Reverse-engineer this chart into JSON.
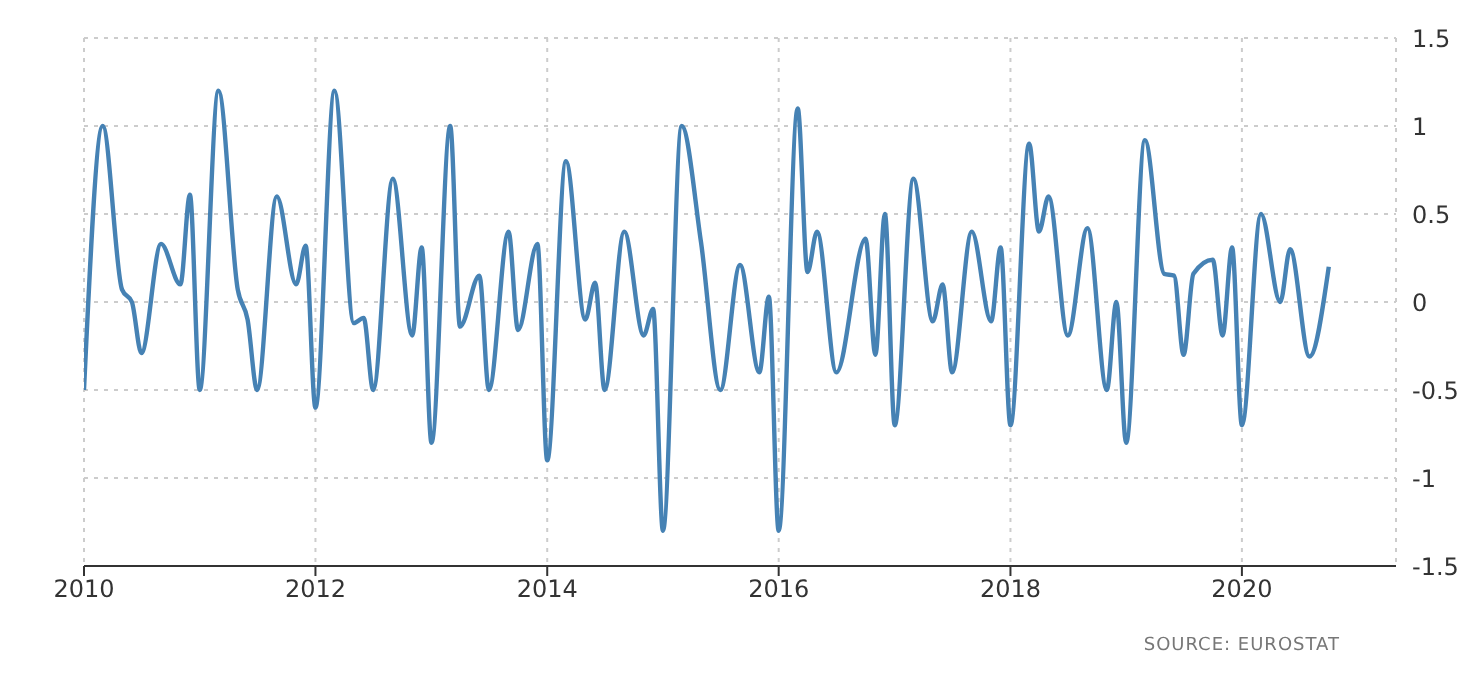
{
  "chart_data": {
    "type": "line",
    "annotations": [
      "SOURCE: EUROSTAT"
    ],
    "x": [
      "2010-01",
      "2010-03",
      "2010-05",
      "2010-06",
      "2010-07",
      "2010-09",
      "2010-11",
      "2010-12",
      "2011-01",
      "2011-03",
      "2011-05",
      "2011-06",
      "2011-07",
      "2011-09",
      "2011-11",
      "2011-12",
      "2012-01",
      "2012-03",
      "2012-05",
      "2012-06",
      "2012-07",
      "2012-09",
      "2012-11",
      "2012-12",
      "2013-01",
      "2013-03",
      "2013-04",
      "2013-06",
      "2013-07",
      "2013-09",
      "2013-10",
      "2013-12",
      "2014-01",
      "2014-03",
      "2014-05",
      "2014-06",
      "2014-07",
      "2014-09",
      "2014-11",
      "2014-12",
      "2015-01",
      "2015-03",
      "2015-05",
      "2015-07",
      "2015-09",
      "2015-11",
      "2015-12",
      "2016-01",
      "2016-03",
      "2016-04",
      "2016-05",
      "2016-07",
      "2016-10",
      "2016-11",
      "2016-12",
      "2017-01",
      "2017-03",
      "2017-05",
      "2017-06",
      "2017-07",
      "2017-09",
      "2017-11",
      "2017-12",
      "2018-01",
      "2018-03",
      "2018-04",
      "2018-05",
      "2018-07",
      "2018-09",
      "2018-11",
      "2018-12",
      "2019-01",
      "2019-03",
      "2019-05",
      "2019-06",
      "2019-07",
      "2019-08",
      "2019-10",
      "2019-11",
      "2019-12",
      "2020-01",
      "2020-03",
      "2020-05",
      "2020-06",
      "2020-08",
      "2020-10"
    ],
    "series": [
      {
        "color": "#4682b4",
        "values": [
          -0.5,
          1.0,
          0.07,
          0.0,
          -0.29,
          0.33,
          0.1,
          0.61,
          -0.5,
          1.2,
          0.07,
          -0.1,
          -0.5,
          0.6,
          0.1,
          0.32,
          -0.6,
          1.2,
          -0.12,
          -0.09,
          -0.5,
          0.7,
          -0.19,
          0.31,
          -0.8,
          1.0,
          -0.14,
          0.15,
          -0.5,
          0.4,
          -0.16,
          0.33,
          -0.9,
          0.8,
          -0.1,
          0.11,
          -0.5,
          0.4,
          -0.19,
          -0.04,
          -1.3,
          1.0,
          0.34,
          -0.5,
          0.21,
          -0.4,
          0.03,
          -1.3,
          1.1,
          0.17,
          0.4,
          -0.4,
          0.36,
          -0.3,
          0.5,
          -0.7,
          0.7,
          -0.11,
          0.1,
          -0.4,
          0.4,
          -0.11,
          0.31,
          -0.7,
          0.9,
          0.4,
          0.6,
          -0.19,
          0.42,
          -0.5,
          0.0,
          -0.8,
          0.92,
          0.16,
          0.15,
          -0.3,
          0.16,
          0.24,
          -0.19,
          0.31,
          -0.7,
          0.5,
          0.0,
          0.3,
          -0.31,
          0.2
        ]
      }
    ],
    "xlim": [
      "2010-01",
      "2021-05"
    ],
    "xticks": [
      {
        "value": "2010",
        "label": "2010"
      },
      {
        "value": "2012",
        "label": "2012"
      },
      {
        "value": "2014",
        "label": "2014"
      },
      {
        "value": "2016",
        "label": "2016"
      },
      {
        "value": "2018",
        "label": "2018"
      },
      {
        "value": "2020",
        "label": "2020"
      }
    ],
    "ylim": [
      -1.5,
      1.5
    ],
    "yticks": [
      -1.5,
      -1,
      -0.5,
      0,
      0.5,
      1,
      1.5
    ],
    "grid": true,
    "marker": "none",
    "line_style": "solid"
  }
}
